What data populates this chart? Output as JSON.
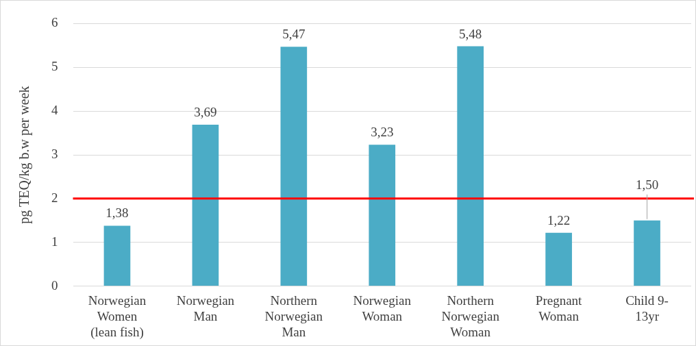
{
  "chart_data": {
    "type": "bar",
    "ylabel": "pg TEQ/kg b.w per week",
    "categories": [
      "Norwegian Women (lean fish)",
      "Norwegian Man",
      "Northern Norwegian Man",
      "Norwegian Woman",
      "Northern Norwegian Woman",
      "Pregnant Woman",
      "Child 9-13yr"
    ],
    "values": [
      1.38,
      3.69,
      5.47,
      3.23,
      5.48,
      1.22,
      1.5
    ],
    "value_labels": [
      "1,38",
      "3,69",
      "5,47",
      "3,23",
      "5,48",
      "1,22",
      "1,50"
    ],
    "color": "#4bacc6",
    "ylim": [
      0,
      6
    ],
    "yticks": [
      0,
      1,
      2,
      3,
      4,
      5,
      6
    ],
    "grid": "y",
    "ref_lines": [
      {
        "axis": "y",
        "value": 2,
        "color": "#ff0000"
      }
    ]
  }
}
